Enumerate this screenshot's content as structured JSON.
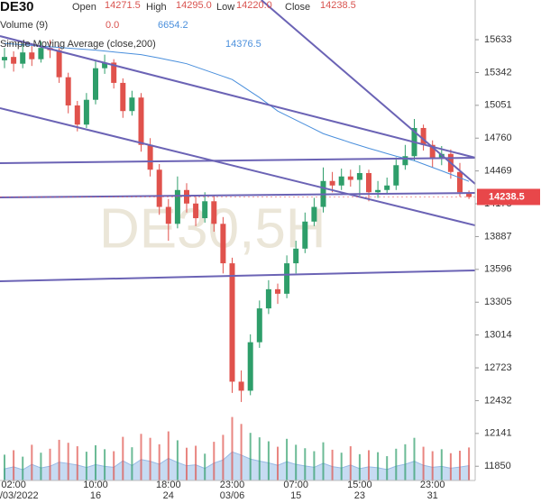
{
  "chart_data": {
    "type": "candlestick",
    "symbol": "DE30",
    "legend": {
      "open_label": "Open",
      "open": "14271.5",
      "high_label": "High",
      "high": "14295.0",
      "low_label": "Low",
      "low": "14220.0",
      "close_label": "Close",
      "close": "14238.5",
      "volume_label": "Volume (9)",
      "volume_a": "0.0",
      "volume_b": "6654.2",
      "sma_label": "Simple Moving Average (close,200)",
      "sma": "14376.5"
    },
    "watermark": "DE30,5H",
    "categories": [
      null,
      "02:00",
      null,
      null,
      null,
      null,
      null,
      null,
      null,
      null,
      "10:00",
      null,
      null,
      null,
      null,
      null,
      null,
      null,
      "18:00",
      null,
      null,
      null,
      null,
      null,
      null,
      "23:00",
      null,
      null,
      null,
      null,
      null,
      null,
      "07:00",
      null,
      null,
      null,
      null,
      null,
      null,
      "15:00",
      null,
      null,
      null,
      null,
      null,
      null,
      null,
      "23:00",
      null,
      null,
      null,
      null
    ],
    "dates": [
      null,
      "02/03/2022",
      null,
      null,
      null,
      null,
      null,
      null,
      null,
      null,
      "16",
      null,
      null,
      null,
      null,
      null,
      null,
      null,
      "24",
      null,
      null,
      null,
      null,
      null,
      null,
      "03/06",
      null,
      null,
      null,
      null,
      null,
      null,
      "15",
      null,
      null,
      null,
      null,
      null,
      null,
      "23",
      null,
      null,
      null,
      null,
      null,
      null,
      null,
      "31",
      null,
      null,
      null,
      null
    ],
    "open": [
      15450,
      15480,
      15420,
      15520,
      15460,
      15560,
      15540,
      15300,
      15050,
      14880,
      15100,
      15380,
      15430,
      15250,
      15000,
      15120,
      14700,
      14480,
      14150,
      14000,
      14300,
      14180,
      14050,
      14200,
      14000,
      13650,
      12600,
      12520,
      12950,
      13250,
      13420,
      13380,
      13650,
      13780,
      14020,
      14150,
      14380,
      14340,
      14420,
      14390,
      14450,
      14280,
      14300,
      14340,
      14520,
      14600,
      14850,
      14700,
      14580,
      14620,
      14460,
      14271.5
    ],
    "high": [
      15560,
      15530,
      15600,
      15580,
      15620,
      15630,
      15580,
      15340,
      15090,
      15160,
      15440,
      15500,
      15460,
      15290,
      15180,
      15160,
      14760,
      14530,
      14220,
      14420,
      14360,
      14240,
      14280,
      14250,
      14060,
      13700,
      12700,
      13020,
      13320,
      13500,
      13470,
      13720,
      13850,
      14100,
      14230,
      14500,
      14460,
      14490,
      14480,
      14520,
      14480,
      14380,
      14410,
      14590,
      14700,
      14930,
      14880,
      14740,
      14690,
      14660,
      14540,
      14295
    ],
    "low": [
      15380,
      15350,
      15380,
      15400,
      15430,
      15470,
      15250,
      14980,
      14820,
      14850,
      15060,
      15330,
      15200,
      14940,
      14960,
      14640,
      14420,
      14080,
      13850,
      13960,
      14100,
      13980,
      14010,
      13930,
      13560,
      12500,
      12420,
      12480,
      12900,
      13200,
      13290,
      13340,
      13560,
      13740,
      13980,
      14100,
      14280,
      14300,
      14330,
      14250,
      14200,
      14230,
      14260,
      14300,
      14480,
      14560,
      14650,
      14500,
      14520,
      14400,
      14240,
      14220
    ],
    "close": [
      15480,
      15420,
      15520,
      15460,
      15560,
      15540,
      15300,
      15050,
      14880,
      15100,
      15380,
      15430,
      15250,
      15000,
      15120,
      14700,
      14480,
      14150,
      14000,
      14300,
      14180,
      14050,
      14200,
      14000,
      13650,
      12600,
      12520,
      12950,
      13250,
      13420,
      13380,
      13650,
      13780,
      14020,
      14150,
      14380,
      14340,
      14420,
      14390,
      14450,
      14280,
      14300,
      14340,
      14520,
      14600,
      14850,
      14700,
      14580,
      14620,
      14460,
      14280,
      14238.5
    ],
    "volume": [
      5200,
      6100,
      4800,
      7200,
      5600,
      6400,
      8200,
      7600,
      6900,
      5800,
      7100,
      6300,
      5900,
      8800,
      6700,
      9400,
      8600,
      7300,
      9900,
      8100,
      6600,
      7000,
      5400,
      7800,
      9200,
      12800,
      11400,
      9600,
      8700,
      7900,
      6800,
      8400,
      7200,
      6500,
      5900,
      7700,
      6200,
      5600,
      6900,
      5300,
      6100,
      5700,
      4900,
      6400,
      7300,
      8600,
      6800,
      5900,
      6300,
      5500,
      6000,
      6654.2
    ],
    "volume_ylim": [
      0,
      20000
    ],
    "sma": [
      15600,
      15594,
      15588,
      15582,
      15576,
      15570,
      15564,
      15558,
      15552,
      15546,
      15540,
      15532,
      15524,
      15516,
      15508,
      15500,
      15485,
      15470,
      15453,
      15437,
      15420,
      15392,
      15364,
      15336,
      15308,
      15280,
      15227,
      15173,
      15120,
      15060,
      15000,
      14960,
      14920,
      14880,
      14840,
      14800,
      14773,
      14747,
      14720,
      14695,
      14670,
      14647,
      14623,
      14600,
      14580,
      14560,
      14530,
      14500,
      14470,
      14439,
      14408,
      14376.5
    ],
    "trendlines": [
      {
        "x": [
          -0.5,
          51.7
        ],
        "y": [
          15026,
          13986
        ]
      },
      {
        "x": [
          -0.5,
          51.7
        ],
        "y": [
          15665,
          14586
        ]
      },
      {
        "x": [
          -0.5,
          51.7
        ],
        "y": [
          14538,
          14586
        ]
      },
      {
        "x": [
          -0.5,
          51.7
        ],
        "y": [
          14234,
          14274
        ]
      },
      {
        "x": [
          -0.5,
          51.7
        ],
        "y": [
          13491,
          13587
        ]
      },
      {
        "x": [
          28.2,
          51.7
        ],
        "y": [
          15985,
          14353
        ]
      }
    ],
    "ylim": [
      11724,
      15985
    ],
    "yticks": [
      15633,
      15342,
      15051,
      14760,
      14469,
      14178,
      13887,
      13596,
      13305,
      13014,
      12723,
      12432,
      12141,
      11850
    ],
    "colors": {
      "up": "#2e9e6a",
      "down": "#e0524c",
      "trendline": "#6b63b5",
      "sma": "#4a8fdc",
      "volume_area": "#b9d3ef",
      "price_label": "#e8474a"
    }
  }
}
